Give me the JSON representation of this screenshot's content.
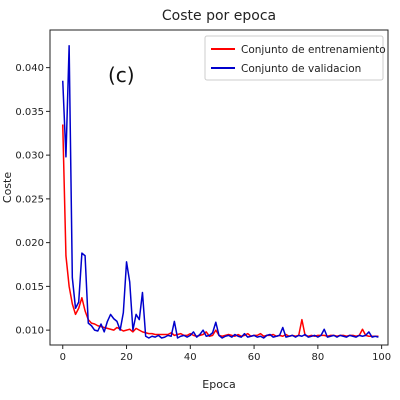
{
  "chart_data": {
    "type": "line",
    "title": "Coste por epoca",
    "xlabel": "Epoca",
    "ylabel": "Coste",
    "panel_label": "(c)",
    "xlim": [
      -4,
      102
    ],
    "ylim": [
      0.0083,
      0.0443
    ],
    "xticks": [
      0,
      20,
      40,
      60,
      80,
      100
    ],
    "yticks": [
      0.01,
      0.015,
      0.02,
      0.025,
      0.03,
      0.035,
      0.04
    ],
    "ytick_labels": [
      "0.010",
      "0.015",
      "0.020",
      "0.025",
      "0.030",
      "0.035",
      "0.040"
    ],
    "grid": false,
    "legend": "top-right",
    "x": [
      0,
      1,
      2,
      3,
      4,
      5,
      6,
      7,
      8,
      9,
      10,
      11,
      12,
      13,
      14,
      15,
      16,
      17,
      18,
      19,
      20,
      21,
      22,
      23,
      24,
      25,
      26,
      27,
      28,
      29,
      30,
      31,
      32,
      33,
      34,
      35,
      36,
      37,
      38,
      39,
      40,
      41,
      42,
      43,
      44,
      45,
      46,
      47,
      48,
      49,
      50,
      51,
      52,
      53,
      54,
      55,
      56,
      57,
      58,
      59,
      60,
      61,
      62,
      63,
      64,
      65,
      66,
      67,
      68,
      69,
      70,
      71,
      72,
      73,
      74,
      75,
      76,
      77,
      78,
      79,
      80,
      81,
      82,
      83,
      84,
      85,
      86,
      87,
      88,
      89,
      90,
      91,
      92,
      93,
      94,
      95,
      96,
      97,
      98,
      99
    ],
    "series": [
      {
        "name": "Conjunto de entrenamiento",
        "color": "#ff0000",
        "values": [
          0.0335,
          0.0185,
          0.015,
          0.013,
          0.0118,
          0.0125,
          0.0137,
          0.0122,
          0.0112,
          0.0108,
          0.0107,
          0.0105,
          0.0104,
          0.0103,
          0.0102,
          0.0101,
          0.01,
          0.0103,
          0.0101,
          0.0099,
          0.01,
          0.0101,
          0.0098,
          0.0102,
          0.01,
          0.0098,
          0.0097,
          0.0096,
          0.0096,
          0.0095,
          0.0095,
          0.0095,
          0.0095,
          0.0095,
          0.0097,
          0.0094,
          0.0095,
          0.0096,
          0.0094,
          0.0094,
          0.0096,
          0.0094,
          0.0093,
          0.0094,
          0.0095,
          0.0098,
          0.0093,
          0.0094,
          0.01,
          0.0094,
          0.0093,
          0.0094,
          0.0095,
          0.0094,
          0.0093,
          0.0095,
          0.0093,
          0.0094,
          0.0096,
          0.0093,
          0.0094,
          0.0094,
          0.0096,
          0.0093,
          0.0094,
          0.0094,
          0.0095,
          0.0093,
          0.0094,
          0.0093,
          0.0095,
          0.0093,
          0.0094,
          0.0093,
          0.0094,
          0.0112,
          0.0094,
          0.0093,
          0.0094,
          0.0093,
          0.0094,
          0.0094,
          0.0094,
          0.0093,
          0.0094,
          0.0094,
          0.0093,
          0.0094,
          0.0094,
          0.0093,
          0.0094,
          0.0094,
          0.0093,
          0.0094,
          0.0101,
          0.0094,
          0.0093,
          0.0093,
          0.0093,
          0.0093
        ]
      },
      {
        "name": "Conjunto de validacion",
        "color": "#0000cc",
        "values": [
          0.0385,
          0.0298,
          0.0425,
          0.016,
          0.0125,
          0.0132,
          0.0188,
          0.0185,
          0.0108,
          0.0105,
          0.01,
          0.0099,
          0.0107,
          0.0098,
          0.011,
          0.0118,
          0.0113,
          0.011,
          0.01,
          0.012,
          0.0178,
          0.0155,
          0.01,
          0.0118,
          0.0112,
          0.0143,
          0.0093,
          0.0091,
          0.0093,
          0.0092,
          0.0094,
          0.0091,
          0.0092,
          0.0094,
          0.0093,
          0.011,
          0.0091,
          0.0093,
          0.0094,
          0.0092,
          0.0094,
          0.0098,
          0.0092,
          0.0095,
          0.01,
          0.0093,
          0.0094,
          0.0097,
          0.0109,
          0.0094,
          0.0091,
          0.0093,
          0.0094,
          0.0092,
          0.0095,
          0.0093,
          0.0092,
          0.0096,
          0.0092,
          0.0093,
          0.0094,
          0.0092,
          0.0093,
          0.0091,
          0.0094,
          0.0095,
          0.0092,
          0.0093,
          0.0094,
          0.0103,
          0.0092,
          0.0093,
          0.0094,
          0.0092,
          0.0094,
          0.0093,
          0.0095,
          0.0092,
          0.0093,
          0.0094,
          0.0092,
          0.0094,
          0.0101,
          0.0092,
          0.0093,
          0.0094,
          0.0092,
          0.0094,
          0.0093,
          0.0092,
          0.0094,
          0.0093,
          0.0092,
          0.0094,
          0.0093,
          0.0094,
          0.0098,
          0.0092,
          0.0093,
          0.0092
        ]
      }
    ]
  }
}
